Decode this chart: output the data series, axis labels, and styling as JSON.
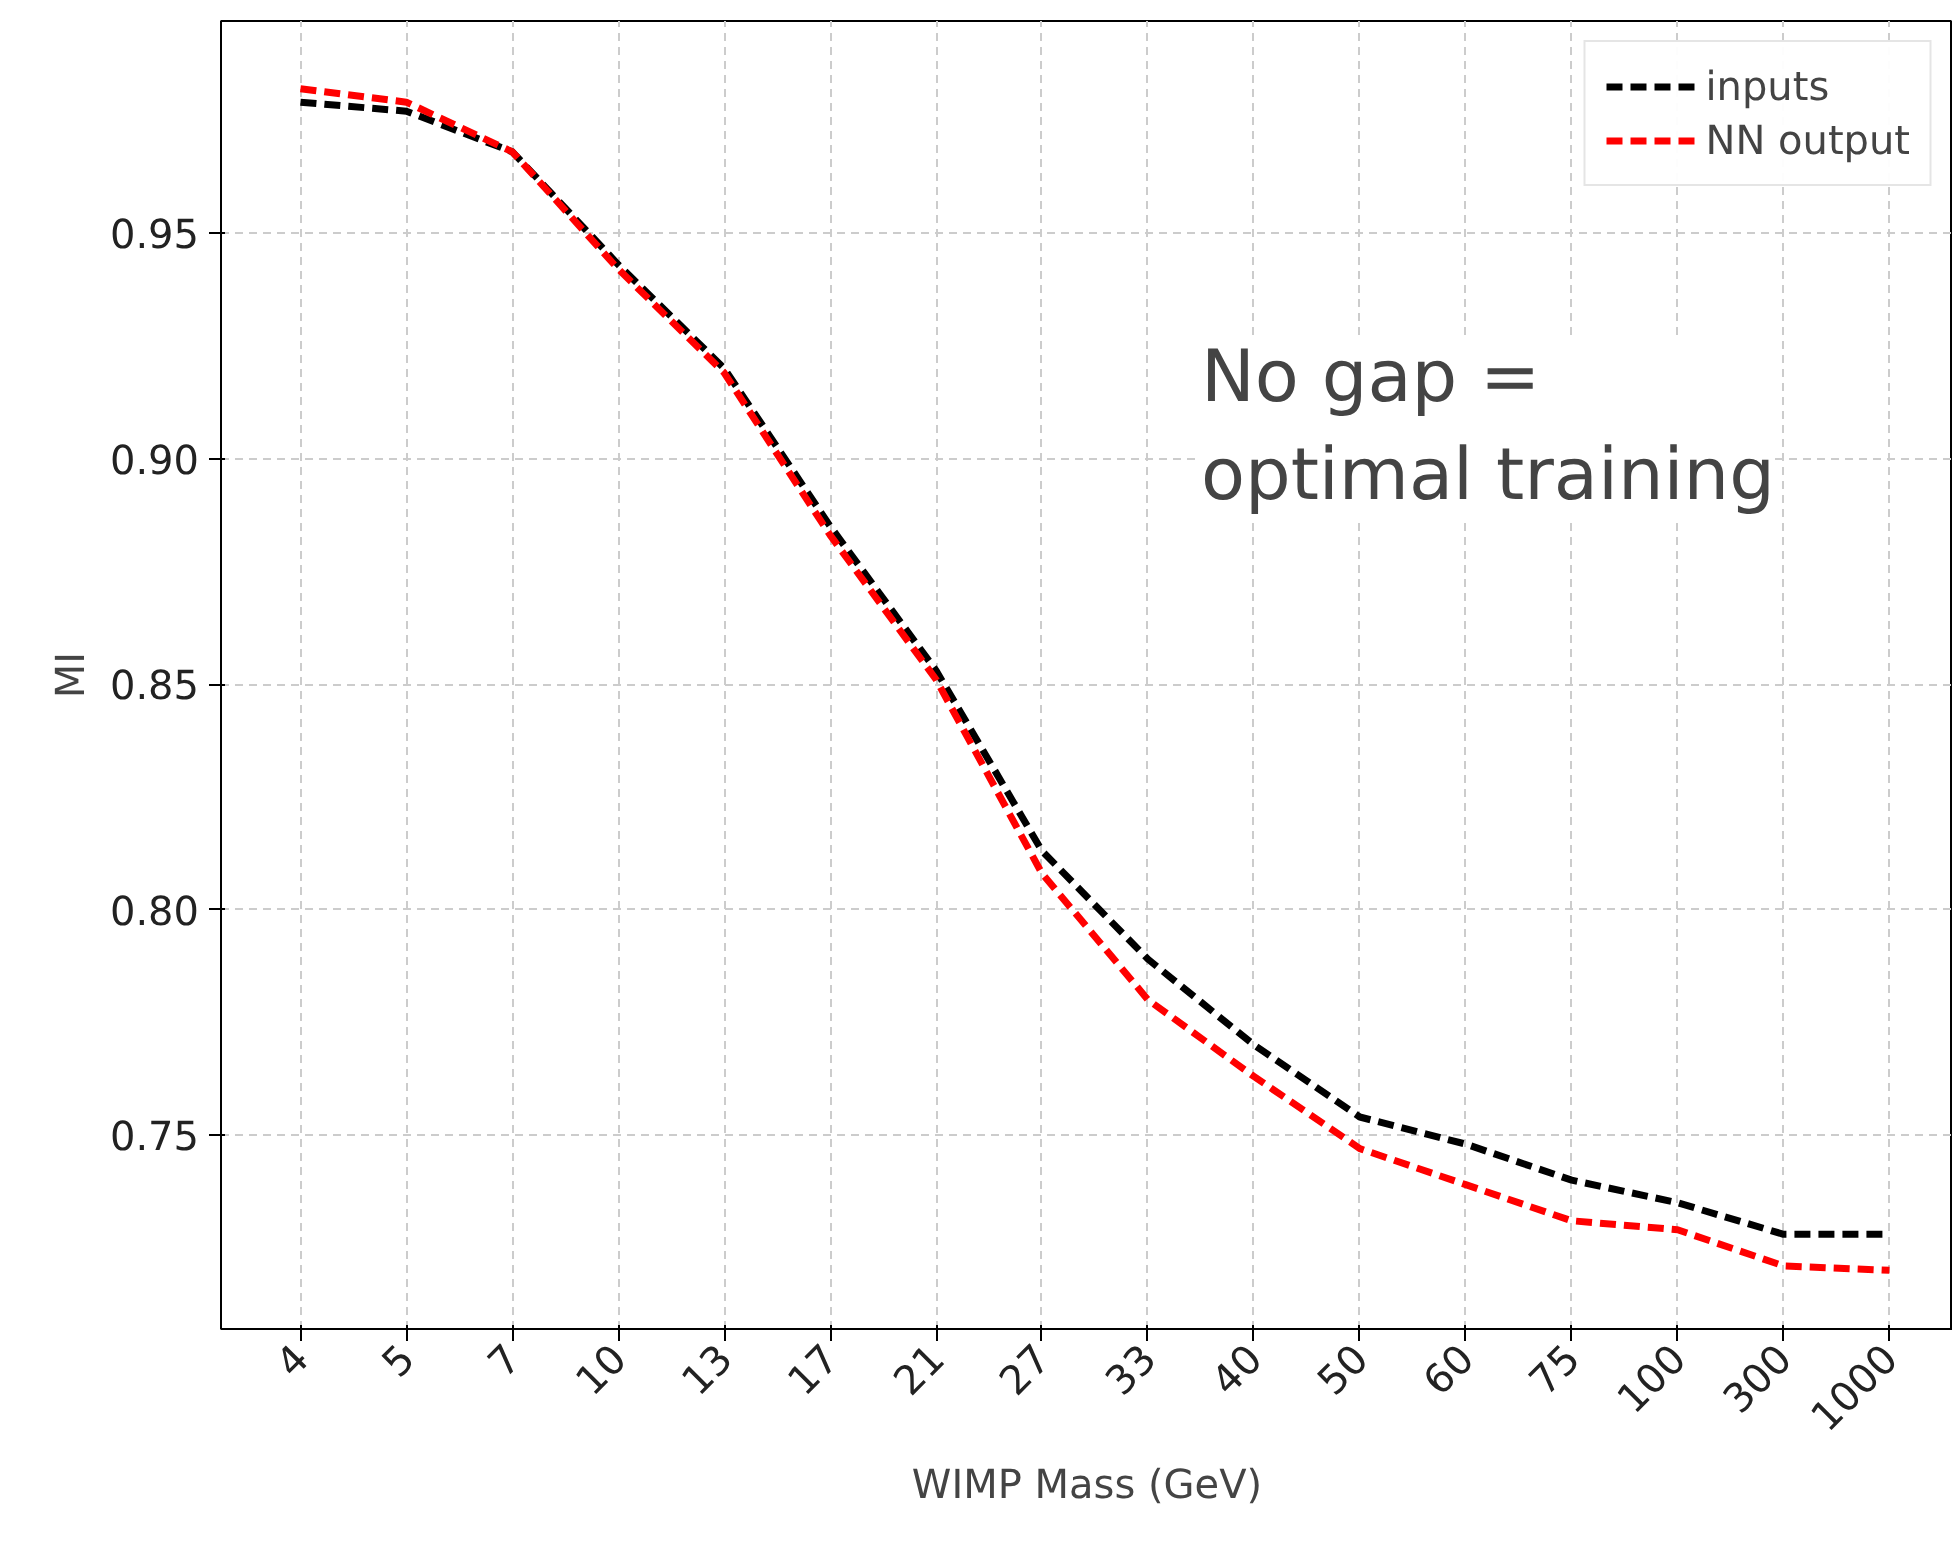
{
  "chart_data": {
    "type": "line",
    "xlabel": "WIMP Mass (GeV)",
    "ylabel": "MI",
    "categories": [
      "4",
      "5",
      "7",
      "10",
      "13",
      "17",
      "21",
      "27",
      "33",
      "40",
      "50",
      "60",
      "75",
      "100",
      "300",
      "1000"
    ],
    "series": [
      {
        "name": "inputs",
        "color": "#000000",
        "values": [
          0.979,
          0.977,
          0.968,
          0.943,
          0.92,
          0.885,
          0.853,
          0.813,
          0.789,
          0.77,
          0.754,
          0.748,
          0.74,
          0.735,
          0.728,
          0.728
        ]
      },
      {
        "name": "NN output",
        "color": "#ff0000",
        "values": [
          0.982,
          0.979,
          0.968,
          0.942,
          0.919,
          0.883,
          0.851,
          0.808,
          0.78,
          0.763,
          0.747,
          0.739,
          0.731,
          0.729,
          0.721,
          0.72
        ]
      }
    ],
    "ylim": [
      0.707,
      0.997
    ],
    "yticks": [
      0.75,
      {
        "value": 0.8,
        "label": "0.80"
      },
      0.85,
      {
        "value": 0.9,
        "label": "0.90"
      },
      0.95
    ],
    "annotations": [
      "No gap =\noptimal training"
    ],
    "grid": true,
    "legend": "top right",
    "marker": "none",
    "line_style": "dashed"
  }
}
